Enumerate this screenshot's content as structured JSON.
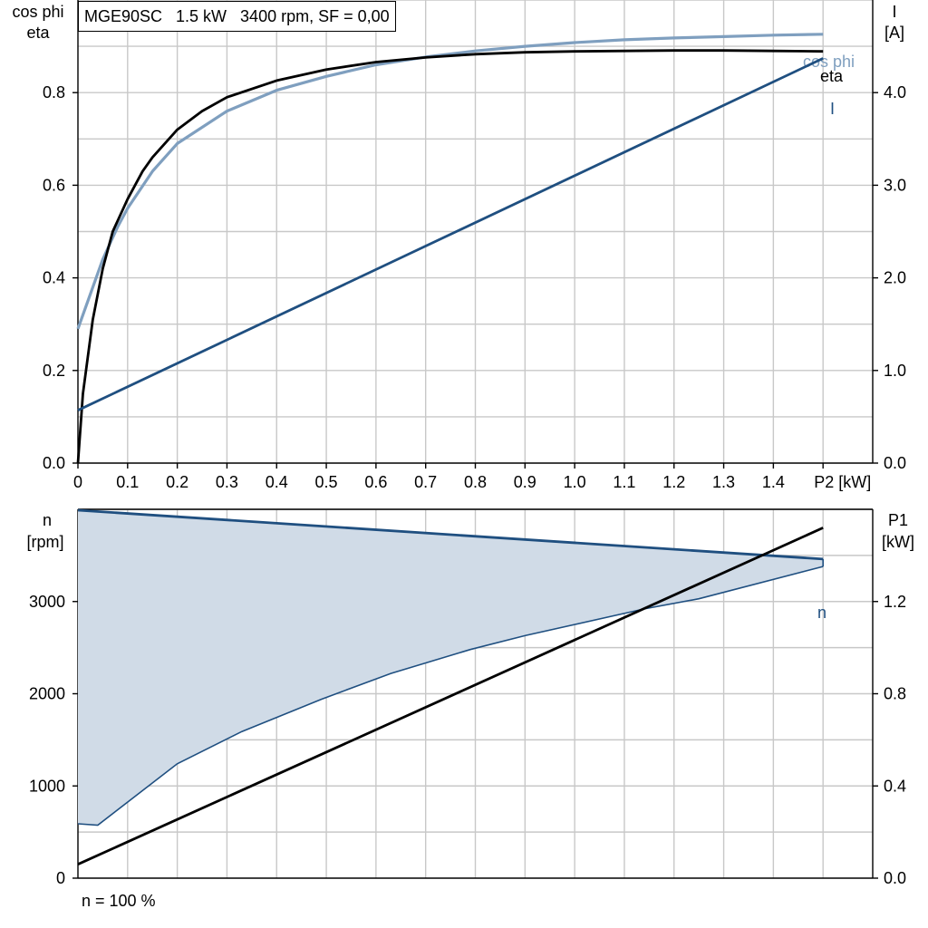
{
  "info_box": "MGE90SC   1.5 kW   3400 rpm, SF = 0,00",
  "footer_note": "n = 100 %",
  "chart_data": [
    {
      "type": "line",
      "xlabel": "P2 [kW]",
      "xlim": [
        0,
        1.6
      ],
      "x_ticks": [
        "0",
        "0.1",
        "0.2",
        "0.3",
        "0.4",
        "0.5",
        "0.6",
        "0.7",
        "0.8",
        "0.9",
        "1.0",
        "1.1",
        "1.2",
        "1.3",
        "1.4",
        "P2 [kW]"
      ],
      "ylabel_left_line1": "cos phi",
      "ylabel_left_line2": "eta",
      "ylim_left": [
        0,
        1.0
      ],
      "y_ticks_left": [
        "0.0",
        "0.2",
        "0.4",
        "0.6",
        "0.8"
      ],
      "ylabel_right_line1": "I",
      "ylabel_right_line2": "[A]",
      "ylim_right": [
        0,
        5.0
      ],
      "y_ticks_right": [
        "0.0",
        "1.0",
        "2.0",
        "3.0",
        "4.0"
      ],
      "grid": true,
      "series": [
        {
          "name": "cos phi",
          "axis": "left",
          "color": "#7f9fbf",
          "x": [
            0,
            0.02,
            0.05,
            0.08,
            0.1,
            0.15,
            0.2,
            0.3,
            0.4,
            0.5,
            0.6,
            0.7,
            0.8,
            0.9,
            1.0,
            1.1,
            1.2,
            1.3,
            1.4,
            1.5
          ],
          "y": [
            0.29,
            0.35,
            0.44,
            0.51,
            0.55,
            0.63,
            0.69,
            0.76,
            0.805,
            0.835,
            0.86,
            0.877,
            0.89,
            0.9,
            0.908,
            0.914,
            0.918,
            0.921,
            0.924,
            0.926
          ]
        },
        {
          "name": "eta",
          "axis": "left",
          "color": "#000000",
          "x": [
            0,
            0.01,
            0.03,
            0.05,
            0.07,
            0.1,
            0.13,
            0.15,
            0.2,
            0.25,
            0.3,
            0.4,
            0.5,
            0.6,
            0.7,
            0.8,
            0.9,
            1.0,
            1.1,
            1.2,
            1.3,
            1.4,
            1.5
          ],
          "y": [
            0.0,
            0.15,
            0.31,
            0.42,
            0.5,
            0.57,
            0.63,
            0.66,
            0.72,
            0.76,
            0.79,
            0.826,
            0.85,
            0.866,
            0.876,
            0.883,
            0.887,
            0.889,
            0.89,
            0.891,
            0.891,
            0.89,
            0.889
          ]
        },
        {
          "name": "I",
          "axis": "right",
          "color": "#1f4f80",
          "x": [
            0,
            1.5
          ],
          "y": [
            0.57,
            4.37
          ]
        }
      ]
    },
    {
      "type": "area",
      "xlim": [
        0,
        1.6
      ],
      "ylabel_left_line1": "n",
      "ylabel_left_line2": "[rpm]",
      "ylim_left": [
        0,
        4000
      ],
      "y_ticks_left": [
        "0",
        "1000",
        "2000",
        "3000"
      ],
      "ylabel_right_line1": "P1",
      "ylabel_right_line2": "[kW]",
      "ylim_right": [
        0,
        1.6
      ],
      "y_ticks_right": [
        "0.0",
        "0.4",
        "0.8",
        "1.2"
      ],
      "grid": true,
      "band": {
        "name": "n",
        "color": "#1f4f80",
        "fill": "#d0dbe7",
        "upper": {
          "x": [
            0,
            1.5
          ],
          "y": [
            3990,
            3460
          ]
        },
        "lower": {
          "x": [
            0,
            0.04,
            0.2,
            0.33,
            0.49,
            0.63,
            0.79,
            0.9,
            1.14,
            1.25,
            1.5
          ],
          "y": [
            590,
            575,
            1240,
            1590,
            1940,
            2220,
            2480,
            2630,
            2920,
            3030,
            3380
          ]
        }
      },
      "series": [
        {
          "name": "P1",
          "axis": "right",
          "color": "#000000",
          "x": [
            0,
            1.5
          ],
          "y": [
            0.06,
            1.52
          ]
        }
      ]
    }
  ]
}
